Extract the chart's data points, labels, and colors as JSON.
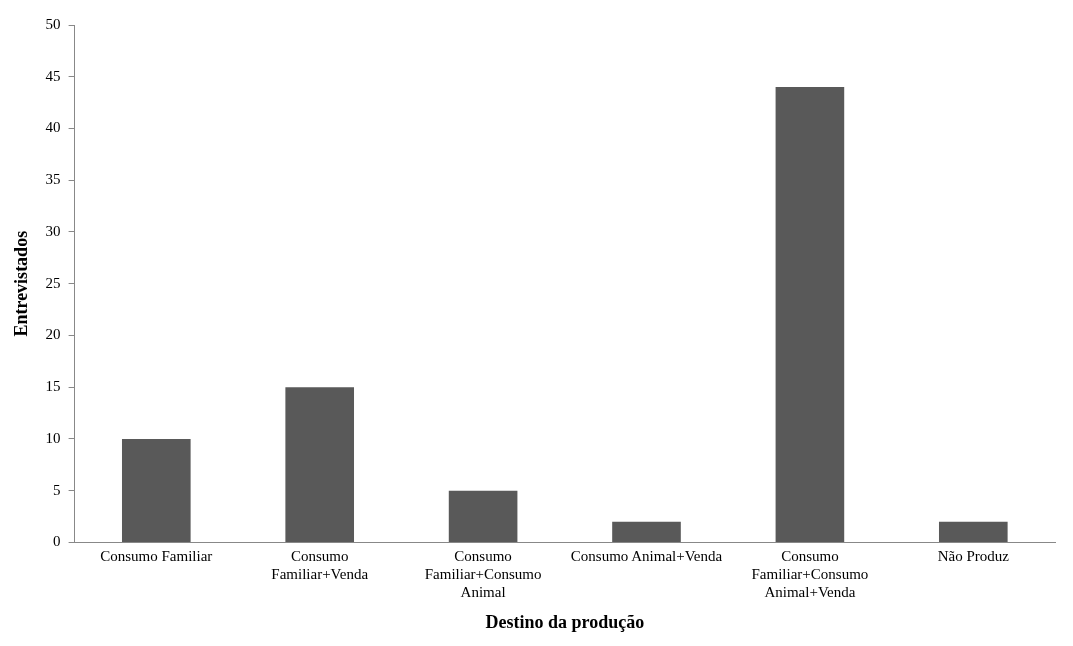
{
  "chart_data": {
    "type": "bar",
    "xlabel": "Destino da produção",
    "ylabel": "Entrevistados",
    "categories": [
      "Consumo Familiar",
      "Consumo Familiar+Venda",
      "Consumo Familiar+Consumo Animal",
      "Consumo Animal+Venda",
      "Consumo Familiar+Consumo Animal+Venda",
      "Não Produz"
    ],
    "values": [
      10,
      15,
      5,
      2,
      44,
      2
    ],
    "color": "#595959",
    "ylim": [
      0,
      50
    ],
    "yticks": [
      0,
      5,
      10,
      15,
      20,
      25,
      30,
      35,
      40,
      45,
      50
    ],
    "grid": false,
    "legend": false
  }
}
